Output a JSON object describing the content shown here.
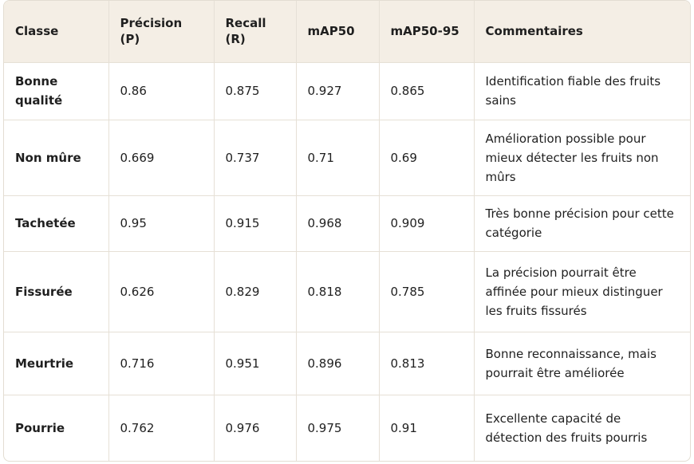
{
  "table": {
    "headers": [
      "Classe",
      "Précision (P)",
      "Recall (R)",
      "mAP50",
      "mAP50-95",
      "Commentaires"
    ],
    "rows": [
      [
        "Bonne qualité",
        "0.86",
        "0.875",
        "0.927",
        "0.865",
        "Identification fiable des fruits sains"
      ],
      [
        "Non mûre",
        "0.669",
        "0.737",
        "0.71",
        "0.69",
        "Amélioration possible pour mieux détecter les fruits non mûrs"
      ],
      [
        "Tachetée",
        "0.95",
        "0.915",
        "0.968",
        "0.909",
        "Très bonne précision pour cette catégorie"
      ],
      [
        "Fissurée",
        "0.626",
        "0.829",
        "0.818",
        "0.785",
        "La précision pourrait être affinée pour mieux distinguer les fruits fissurés"
      ],
      [
        "Meurtrie",
        "0.716",
        "0.951",
        "0.896",
        "0.813",
        "Bonne reconnaissance, mais pourrait être améliorée"
      ],
      [
        "Pourrie",
        "0.762",
        "0.976",
        "0.975",
        "0.91",
        "Excellente capacité de détection des fruits pourris"
      ]
    ]
  }
}
